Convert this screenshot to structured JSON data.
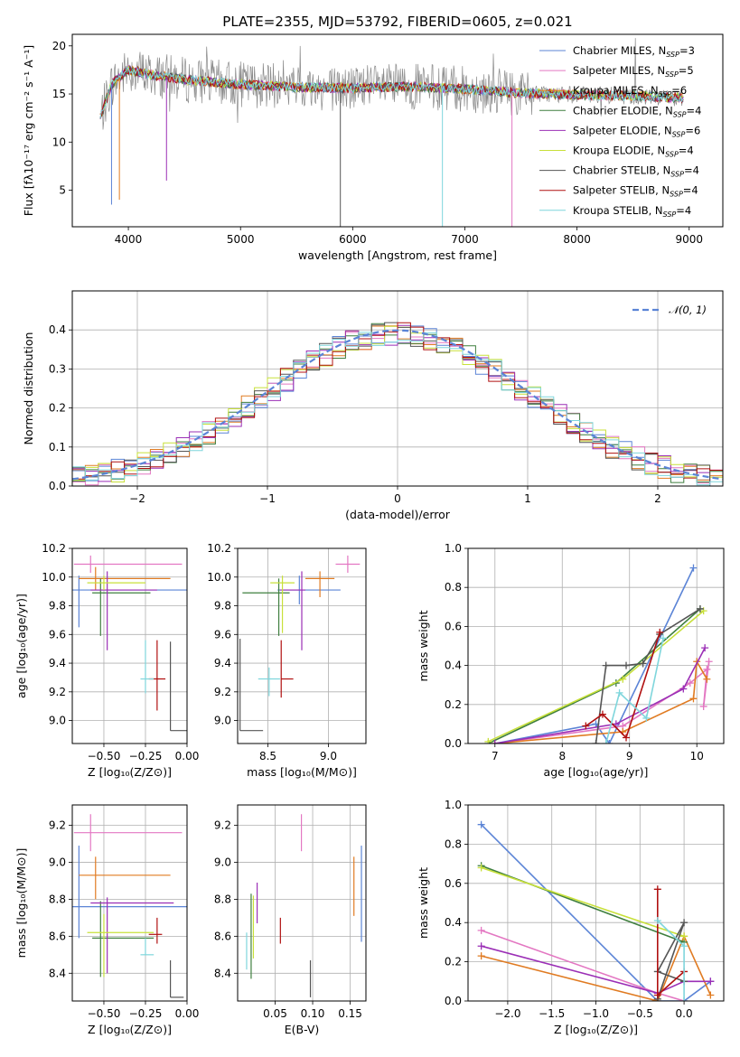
{
  "colors": {
    "Chabrier MILES": "#5b84d6",
    "Salpeter MILES": "#e377c2",
    "Kroupa MILES": "#e07b22",
    "Chabrier ELODIE": "#3f7f3f",
    "Salpeter ELODIE": "#9b2fb6",
    "Kroupa ELODIE": "#c8e03a",
    "Chabrier STELIB": "#555555",
    "Salpeter STELIB": "#b01010",
    "Kroupa STELIB": "#7fd6dc",
    "data": "#8a8a8a"
  },
  "chart_data": [
    {
      "id": "spectrum",
      "type": "line",
      "title": "PLATE=2355, MJD=53792, FIBERID=0605, z=0.021",
      "xlabel": "wavelength [Angstrom, rest frame]",
      "ylabel": "Flux [fλ10⁻¹⁷ erg cm⁻² s⁻¹ A⁻¹]",
      "xlim": [
        3500,
        9300
      ],
      "ylim": [
        1.2,
        21.2
      ],
      "xticks": [
        4000,
        5000,
        6000,
        7000,
        8000,
        9000
      ],
      "yticks": [
        5,
        10,
        15,
        20
      ],
      "legend_position": "upper right",
      "legend": [
        {
          "model": "Chabrier MILES",
          "n": "3"
        },
        {
          "model": "Salpeter MILES",
          "n": "5"
        },
        {
          "model": "Kroupa MILES",
          "n": "6"
        },
        {
          "model": "Chabrier ELODIE",
          "n": "4"
        },
        {
          "model": "Salpeter ELODIE",
          "n": "6"
        },
        {
          "model": "Kroupa ELODIE",
          "n": "4"
        },
        {
          "model": "Chabrier STELIB",
          "n": "4"
        },
        {
          "model": "Salpeter STELIB",
          "n": "4"
        },
        {
          "model": "Kroupa STELIB",
          "n": "4"
        }
      ],
      "continuum": {
        "x": [
          3750,
          3850,
          4000,
          4200,
          4500,
          5000,
          5500,
          6000,
          6500,
          7000,
          7500,
          8000,
          8500,
          8950
        ],
        "y": [
          12.5,
          16.0,
          17.5,
          17.0,
          16.5,
          16.0,
          15.7,
          15.6,
          15.8,
          15.5,
          15.1,
          14.9,
          14.8,
          14.6
        ]
      }
    },
    {
      "id": "residuals",
      "type": "step",
      "xlabel": "(data-model)/error",
      "ylabel": "Normed distribution",
      "xlim": [
        -2.5,
        2.5
      ],
      "ylim": [
        0,
        0.5
      ],
      "xticks": [
        -2,
        -1,
        0,
        1,
        2
      ],
      "yticks": [
        0.0,
        0.1,
        0.2,
        0.3,
        0.4
      ],
      "reference_label": "𝒩(0, 1)",
      "legend_position": "upper right"
    },
    {
      "id": "age_vs_Z",
      "type": "errorbar",
      "xlabel": "Z [log₁₀(Z/Z⊙)]",
      "ylabel": "age  [log₁₀(age/yr)]",
      "xlim": [
        -0.69,
        0.0
      ],
      "ylim": [
        8.84,
        10.2
      ],
      "xticks": [
        -0.5,
        -0.25,
        0.0
      ],
      "yticks": [
        9.0,
        9.2,
        9.4,
        9.6,
        9.8,
        10.0,
        10.2
      ],
      "points": [
        {
          "model": "Chabrier MILES",
          "x": -0.65,
          "y": 9.91,
          "xerr": [
            0.05,
            0.7
          ],
          "yerr": [
            0.26,
            0.1
          ]
        },
        {
          "model": "Salpeter MILES",
          "x": -0.58,
          "y": 10.09,
          "xerr": [
            0.1,
            0.55
          ],
          "yerr": [
            0.06,
            0.06
          ]
        },
        {
          "model": "Kroupa MILES",
          "x": -0.55,
          "y": 9.99,
          "xerr": [
            0.1,
            0.45
          ],
          "yerr": [
            0.08,
            0.08
          ]
        },
        {
          "model": "Chabrier ELODIE",
          "x": -0.52,
          "y": 9.89,
          "xerr": [
            0.05,
            0.3
          ],
          "yerr": [
            0.3,
            0.1
          ]
        },
        {
          "model": "Salpeter ELODIE",
          "x": -0.48,
          "y": 9.91,
          "xerr": [
            0.1,
            0.3
          ],
          "yerr": [
            0.42,
            0.13
          ]
        },
        {
          "model": "Kroupa ELODIE",
          "x": -0.5,
          "y": 9.96,
          "xerr": [
            0.1,
            0.25
          ],
          "yerr": [
            0.05,
            0.05
          ]
        },
        {
          "model": "Chabrier STELIB",
          "x": -0.1,
          "y": 8.93,
          "xerr": [
            0.0,
            0.1
          ],
          "yerr": [
            0.0,
            0.62
          ]
        },
        {
          "model": "Salpeter STELIB",
          "x": -0.18,
          "y": 9.29,
          "xerr": [
            0.05,
            0.05
          ],
          "yerr": [
            0.22,
            0.27
          ]
        },
        {
          "model": "Kroupa STELIB",
          "x": -0.25,
          "y": 9.29,
          "xerr": [
            0.03,
            0.05
          ],
          "yerr": [
            0.1,
            0.27
          ]
        }
      ]
    },
    {
      "id": "age_vs_mass",
      "type": "errorbar",
      "xlabel": "mass [log₁₀(M/M⊙)]",
      "ylabel": "",
      "xlim": [
        8.25,
        9.31
      ],
      "ylim": [
        8.84,
        10.2
      ],
      "xticks": [
        8.5,
        9.0
      ],
      "yticks": [
        9.0,
        9.2,
        9.4,
        9.6,
        9.8,
        10.0,
        10.2
      ],
      "points": [
        {
          "model": "Chabrier MILES",
          "x": 8.76,
          "y": 9.91,
          "xerr": [
            0.18,
            0.34
          ],
          "yerr": [
            0.1,
            0.1
          ]
        },
        {
          "model": "Salpeter MILES",
          "x": 9.16,
          "y": 10.09,
          "xerr": [
            0.1,
            0.1
          ],
          "yerr": [
            0.06,
            0.06
          ]
        },
        {
          "model": "Kroupa MILES",
          "x": 8.93,
          "y": 9.99,
          "xerr": [
            0.12,
            0.12
          ],
          "yerr": [
            0.13,
            0.05
          ]
        },
        {
          "model": "Chabrier ELODIE",
          "x": 8.59,
          "y": 9.89,
          "xerr": [
            0.3,
            0.09
          ],
          "yerr": [
            0.3,
            0.1
          ]
        },
        {
          "model": "Salpeter ELODIE",
          "x": 8.78,
          "y": 9.91,
          "xerr": [
            0.18,
            0.03
          ],
          "yerr": [
            0.42,
            0.13
          ]
        },
        {
          "model": "Kroupa ELODIE",
          "x": 8.62,
          "y": 9.96,
          "xerr": [
            0.1,
            0.1
          ],
          "yerr": [
            0.35,
            0.05
          ]
        },
        {
          "model": "Chabrier STELIB",
          "x": 8.27,
          "y": 8.93,
          "xerr": [
            0.0,
            0.19
          ],
          "yerr": [
            0.0,
            0.64
          ]
        },
        {
          "model": "Salpeter STELIB",
          "x": 8.61,
          "y": 9.29,
          "xerr": [
            0.0,
            0.1
          ],
          "yerr": [
            0.13,
            0.27
          ]
        },
        {
          "model": "Kroupa STELIB",
          "x": 8.51,
          "y": 9.29,
          "xerr": [
            0.09,
            0.09
          ],
          "yerr": [
            0.12,
            0.08
          ]
        }
      ]
    },
    {
      "id": "weight_vs_age",
      "type": "line",
      "xlabel": "age  [log₁₀(age/yr)]",
      "ylabel": "mass weight",
      "xlim": [
        6.6,
        10.4
      ],
      "ylim": [
        0,
        1
      ],
      "xticks": [
        7,
        8,
        9,
        10
      ],
      "yticks": [
        0.0,
        0.2,
        0.4,
        0.6,
        0.8,
        1.0
      ],
      "series": [
        {
          "model": "Chabrier MILES",
          "x": [
            7.0,
            8.5,
            8.7,
            9.95
          ],
          "y": [
            0.0,
            0.1,
            0.0,
            0.9
          ]
        },
        {
          "model": "Salpeter MILES",
          "x": [
            7.0,
            8.9,
            9.9,
            10.15,
            10.1,
            10.18
          ],
          "y": [
            0.0,
            0.09,
            0.31,
            0.38,
            0.19,
            0.42
          ]
        },
        {
          "model": "Kroupa MILES",
          "x": [
            7.0,
            8.9,
            9.95,
            10.0,
            10.15
          ],
          "y": [
            0.0,
            0.06,
            0.23,
            0.42,
            0.33
          ]
        },
        {
          "model": "Chabrier ELODIE",
          "x": [
            6.9,
            8.8,
            10.05
          ],
          "y": [
            0.0,
            0.31,
            0.69
          ]
        },
        {
          "model": "Salpeter ELODIE",
          "x": [
            7.0,
            8.8,
            9.8,
            10.12
          ],
          "y": [
            0.0,
            0.1,
            0.28,
            0.49
          ]
        },
        {
          "model": "Kroupa ELODIE",
          "x": [
            6.9,
            8.9,
            10.1
          ],
          "y": [
            0.01,
            0.33,
            0.68
          ]
        },
        {
          "model": "Chabrier STELIB",
          "x": [
            8.5,
            8.65,
            8.95,
            9.2,
            9.45,
            10.05
          ],
          "y": [
            0.0,
            0.4,
            0.4,
            0.41,
            0.56,
            0.69
          ]
        },
        {
          "model": "Salpeter STELIB",
          "x": [
            8.35,
            8.6,
            8.95,
            9.45
          ],
          "y": [
            0.09,
            0.15,
            0.03,
            0.57
          ]
        },
        {
          "model": "Kroupa STELIB",
          "x": [
            8.65,
            8.85,
            9.25,
            9.5
          ],
          "y": [
            0.0,
            0.26,
            0.13,
            0.54
          ]
        }
      ]
    },
    {
      "id": "mass_vs_Z",
      "type": "errorbar",
      "xlabel": "Z [log₁₀(Z/Z⊙)]",
      "ylabel": "mass [log₁₀(M/M⊙)]",
      "xlim": [
        -0.69,
        0.0
      ],
      "ylim": [
        8.25,
        9.31
      ],
      "xticks": [
        -0.5,
        -0.25,
        0.0
      ],
      "yticks": [
        8.4,
        8.6,
        8.8,
        9.0,
        9.2
      ],
      "points": [
        {
          "model": "Chabrier MILES",
          "x": -0.65,
          "y": 8.76,
          "xerr": [
            0.05,
            0.68
          ],
          "yerr": [
            0.17,
            0.33
          ]
        },
        {
          "model": "Salpeter MILES",
          "x": -0.58,
          "y": 9.16,
          "xerr": [
            0.1,
            0.55
          ],
          "yerr": [
            0.1,
            0.1
          ]
        },
        {
          "model": "Kroupa MILES",
          "x": -0.55,
          "y": 8.93,
          "xerr": [
            0.1,
            0.45
          ],
          "yerr": [
            0.13,
            0.1
          ]
        },
        {
          "model": "Chabrier ELODIE",
          "x": -0.52,
          "y": 8.59,
          "xerr": [
            0.05,
            0.32
          ],
          "yerr": [
            0.21,
            0.2
          ]
        },
        {
          "model": "Salpeter ELODIE",
          "x": -0.48,
          "y": 8.78,
          "xerr": [
            0.1,
            0.4
          ],
          "yerr": [
            0.38,
            0.03
          ]
        },
        {
          "model": "Kroupa ELODIE",
          "x": -0.5,
          "y": 8.62,
          "xerr": [
            0.1,
            0.3
          ],
          "yerr": [
            0.24,
            0.1
          ]
        },
        {
          "model": "Chabrier STELIB",
          "x": -0.1,
          "y": 8.27,
          "xerr": [
            0.0,
            0.08
          ],
          "yerr": [
            0.0,
            0.2
          ]
        },
        {
          "model": "Salpeter STELIB",
          "x": -0.18,
          "y": 8.61,
          "xerr": [
            0.05,
            0.03
          ],
          "yerr": [
            0.05,
            0.09
          ]
        },
        {
          "model": "Kroupa STELIB",
          "x": -0.25,
          "y": 8.5,
          "xerr": [
            0.03,
            0.05
          ],
          "yerr": [
            0.0,
            0.09
          ]
        }
      ]
    },
    {
      "id": "mass_vs_ebv",
      "type": "errorbar",
      "xlabel": "E(B-V)",
      "ylabel": "",
      "xlim": [
        0.0,
        0.171
      ],
      "ylim": [
        8.25,
        9.31
      ],
      "xticks": [
        0.05,
        0.1,
        0.15
      ],
      "yticks": [
        8.4,
        8.6,
        8.8,
        9.0,
        9.2
      ],
      "points": [
        {
          "model": "Chabrier MILES",
          "x": 0.165,
          "y": 8.83,
          "xerr": [
            0,
            0
          ],
          "yerr": [
            0.26,
            0.26
          ]
        },
        {
          "model": "Salpeter MILES",
          "x": 0.085,
          "y": 9.16,
          "xerr": [
            0,
            0
          ],
          "yerr": [
            0.1,
            0.1
          ]
        },
        {
          "model": "Kroupa MILES",
          "x": 0.155,
          "y": 8.87,
          "xerr": [
            0,
            0
          ],
          "yerr": [
            0.16,
            0.16
          ]
        },
        {
          "model": "Chabrier ELODIE",
          "x": 0.018,
          "y": 8.6,
          "xerr": [
            0,
            0
          ],
          "yerr": [
            0.23,
            0.23
          ]
        },
        {
          "model": "Salpeter ELODIE",
          "x": 0.026,
          "y": 8.78,
          "xerr": [
            0,
            0
          ],
          "yerr": [
            0.11,
            0.11
          ]
        },
        {
          "model": "Kroupa ELODIE",
          "x": 0.021,
          "y": 8.65,
          "xerr": [
            0,
            0
          ],
          "yerr": [
            0.17,
            0.17
          ]
        },
        {
          "model": "Chabrier STELIB",
          "x": 0.097,
          "y": 8.37,
          "xerr": [
            0,
            0
          ],
          "yerr": [
            0.1,
            0.1
          ]
        },
        {
          "model": "Salpeter STELIB",
          "x": 0.057,
          "y": 8.63,
          "xerr": [
            0,
            0
          ],
          "yerr": [
            0.07,
            0.07
          ]
        },
        {
          "model": "Kroupa STELIB",
          "x": 0.012,
          "y": 8.52,
          "xerr": [
            0,
            0
          ],
          "yerr": [
            0.1,
            0.1
          ]
        }
      ]
    },
    {
      "id": "weight_vs_Z",
      "type": "line",
      "xlabel": "Z [log₁₀(Z/Z⊙)]",
      "ylabel": "mass weight",
      "xlim": [
        -2.45,
        0.45
      ],
      "ylim": [
        0,
        1
      ],
      "xticks": [
        -2.0,
        -1.5,
        -1.0,
        -0.5,
        0.0
      ],
      "yticks": [
        0.0,
        0.2,
        0.4,
        0.6,
        0.8,
        1.0
      ],
      "series": [
        {
          "model": "Chabrier MILES",
          "x": [
            -2.3,
            -0.3,
            0.0,
            0.3
          ],
          "y": [
            0.9,
            0.0,
            0.0,
            0.1
          ]
        },
        {
          "model": "Salpeter MILES",
          "x": [
            -2.3,
            -0.3,
            0.0
          ],
          "y": [
            0.36,
            0.04,
            0.0
          ]
        },
        {
          "model": "Kroupa MILES",
          "x": [
            -2.3,
            -0.3,
            0.0,
            0.3
          ],
          "y": [
            0.23,
            0.0,
            0.33,
            0.03
          ]
        },
        {
          "model": "Chabrier ELODIE",
          "x": [
            -2.3,
            0.0
          ],
          "y": [
            0.69,
            0.3
          ]
        },
        {
          "model": "Salpeter ELODIE",
          "x": [
            -2.3,
            -0.3,
            0.0,
            0.3
          ],
          "y": [
            0.28,
            0.04,
            0.1,
            0.1
          ]
        },
        {
          "model": "Kroupa ELODIE",
          "x": [
            -2.3,
            0.0
          ],
          "y": [
            0.68,
            0.33
          ]
        },
        {
          "model": "Chabrier STELIB",
          "x": [
            -0.3,
            0.0,
            -0.3,
            0.0
          ],
          "y": [
            0.01,
            0.4,
            0.15,
            0.1
          ]
        },
        {
          "model": "Salpeter STELIB",
          "x": [
            -0.3,
            -0.3,
            0.0
          ],
          "y": [
            0.57,
            0.03,
            0.15
          ]
        },
        {
          "model": "Kroupa STELIB",
          "x": [
            -0.3,
            0.0,
            0.0
          ],
          "y": [
            0.41,
            0.28,
            0.0
          ]
        }
      ]
    }
  ]
}
